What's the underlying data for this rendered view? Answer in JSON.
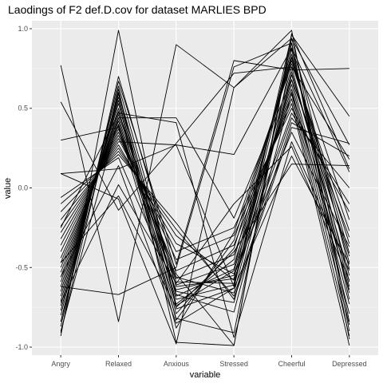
{
  "chart_data": {
    "type": "line",
    "title": "Laodings of F2 def.D.cov for dataset MARLIES BPD",
    "xlabel": "variable",
    "ylabel": "value",
    "categories": [
      "Angry",
      "Relaxed",
      "Anxious",
      "Stressed",
      "Cheerful",
      "Depressed"
    ],
    "ylim": [
      -1.05,
      1.05
    ],
    "yticks": [
      1.0,
      0.5,
      0.0,
      -0.5,
      -1.0
    ],
    "ytick_labels": [
      "1.0",
      "0.5",
      "0.0",
      "-0.5",
      "-1.0"
    ],
    "grid": true,
    "legend": "none",
    "colors": {
      "panel": "#ebebeb",
      "grid_major": "#ffffff",
      "grid_minor": "#f5f5f5",
      "line": "#000000"
    },
    "series": [
      {
        "values": [
          0.77,
          -0.84,
          0.9,
          0.63,
          0.99,
          -0.9
        ]
      },
      {
        "values": [
          -0.93,
          0.99,
          -0.76,
          -0.63,
          0.96,
          0.45
        ]
      },
      {
        "values": [
          -0.91,
          0.62,
          -0.97,
          -0.99,
          0.94,
          -0.51
        ]
      },
      {
        "values": [
          -0.87,
          0.7,
          -0.54,
          -0.99,
          0.97,
          0.12
        ]
      },
      {
        "values": [
          -0.84,
          0.67,
          -0.48,
          0.8,
          0.74,
          0.75
        ]
      },
      {
        "values": [
          -0.8,
          0.64,
          -0.62,
          -0.57,
          0.91,
          -0.84
        ]
      },
      {
        "values": [
          -0.77,
          0.6,
          -0.68,
          -0.51,
          0.87,
          -0.7
        ]
      },
      {
        "values": [
          -0.74,
          0.57,
          -0.73,
          -0.45,
          0.84,
          -0.59
        ]
      },
      {
        "values": [
          -0.71,
          0.55,
          -0.79,
          -0.38,
          0.82,
          -0.47
        ]
      },
      {
        "values": [
          -0.68,
          0.53,
          -0.83,
          -0.33,
          0.8,
          -0.35
        ]
      },
      {
        "values": [
          -0.65,
          0.5,
          -0.88,
          -0.28,
          0.78,
          -0.27
        ]
      },
      {
        "values": [
          -0.62,
          0.48,
          -0.59,
          -0.6,
          0.76,
          -0.62
        ]
      },
      {
        "values": [
          -0.59,
          0.46,
          -0.56,
          -0.66,
          0.73,
          -0.55
        ]
      },
      {
        "values": [
          -0.56,
          0.44,
          -0.65,
          -0.72,
          0.71,
          -0.43
        ]
      },
      {
        "values": [
          -0.53,
          0.42,
          -0.7,
          -0.61,
          0.68,
          -0.66
        ]
      },
      {
        "values": [
          -0.5,
          0.4,
          -0.74,
          -0.52,
          0.65,
          -0.73
        ]
      },
      {
        "values": [
          -0.47,
          0.39,
          -0.61,
          -0.48,
          0.62,
          -0.79
        ]
      },
      {
        "values": [
          -0.44,
          0.37,
          -0.57,
          -0.42,
          0.59,
          -0.86
        ]
      },
      {
        "values": [
          -0.4,
          0.35,
          -0.52,
          -0.36,
          0.56,
          -0.93
        ]
      },
      {
        "values": [
          -0.36,
          0.33,
          -0.45,
          -0.3,
          0.53,
          -0.99
        ]
      },
      {
        "values": [
          -0.32,
          0.31,
          -0.4,
          -0.25,
          0.5,
          -0.15
        ]
      },
      {
        "values": [
          -0.28,
          0.29,
          0.27,
          0.21,
          0.88,
          -0.2
        ]
      },
      {
        "values": [
          -0.24,
          0.27,
          -0.35,
          -0.54,
          0.47,
          -0.1
        ]
      },
      {
        "values": [
          -0.2,
          0.25,
          -0.3,
          -0.58,
          0.44,
          0.0
        ]
      },
      {
        "values": [
          -0.15,
          0.23,
          -0.26,
          -0.68,
          0.41,
          0.2
        ]
      },
      {
        "values": [
          -0.1,
          0.21,
          -0.22,
          -0.7,
          0.38,
          0.28
        ]
      },
      {
        "values": [
          -0.06,
          0.19,
          -0.64,
          -0.55,
          0.35,
          -0.37
        ]
      },
      {
        "values": [
          0.09,
          -0.07,
          -0.98,
          0.63,
          0.94,
          0.27
        ]
      },
      {
        "values": [
          0.09,
          0.12,
          0.27,
          -0.62,
          0.88,
          0.1
        ]
      },
      {
        "values": [
          0.3,
          0.38,
          -0.82,
          -0.91,
          0.82,
          -0.41
        ]
      },
      {
        "values": [
          0.54,
          -0.14,
          0.28,
          0.72,
          0.76,
          0.18
        ]
      },
      {
        "values": [
          -0.25,
          0.47,
          0.41,
          -0.94,
          0.29,
          -0.52
        ]
      },
      {
        "values": [
          -0.9,
          0.44,
          0.44,
          -0.19,
          0.68,
          -0.31
        ]
      },
      {
        "values": [
          -0.62,
          -0.67,
          -0.5,
          0.76,
          0.91,
          -0.95
        ]
      },
      {
        "values": [
          -0.56,
          0.14,
          -0.85,
          -0.63,
          0.2,
          -0.48
        ]
      },
      {
        "values": [
          -0.47,
          -0.05,
          -0.75,
          -0.4,
          0.15,
          0.14
        ]
      },
      {
        "values": [
          -0.72,
          0.02,
          -0.6,
          -0.1,
          0.26,
          -0.58
        ]
      },
      {
        "values": [
          -0.84,
          0.59,
          -0.67,
          -0.78,
          0.6,
          -0.64
        ]
      }
    ]
  }
}
